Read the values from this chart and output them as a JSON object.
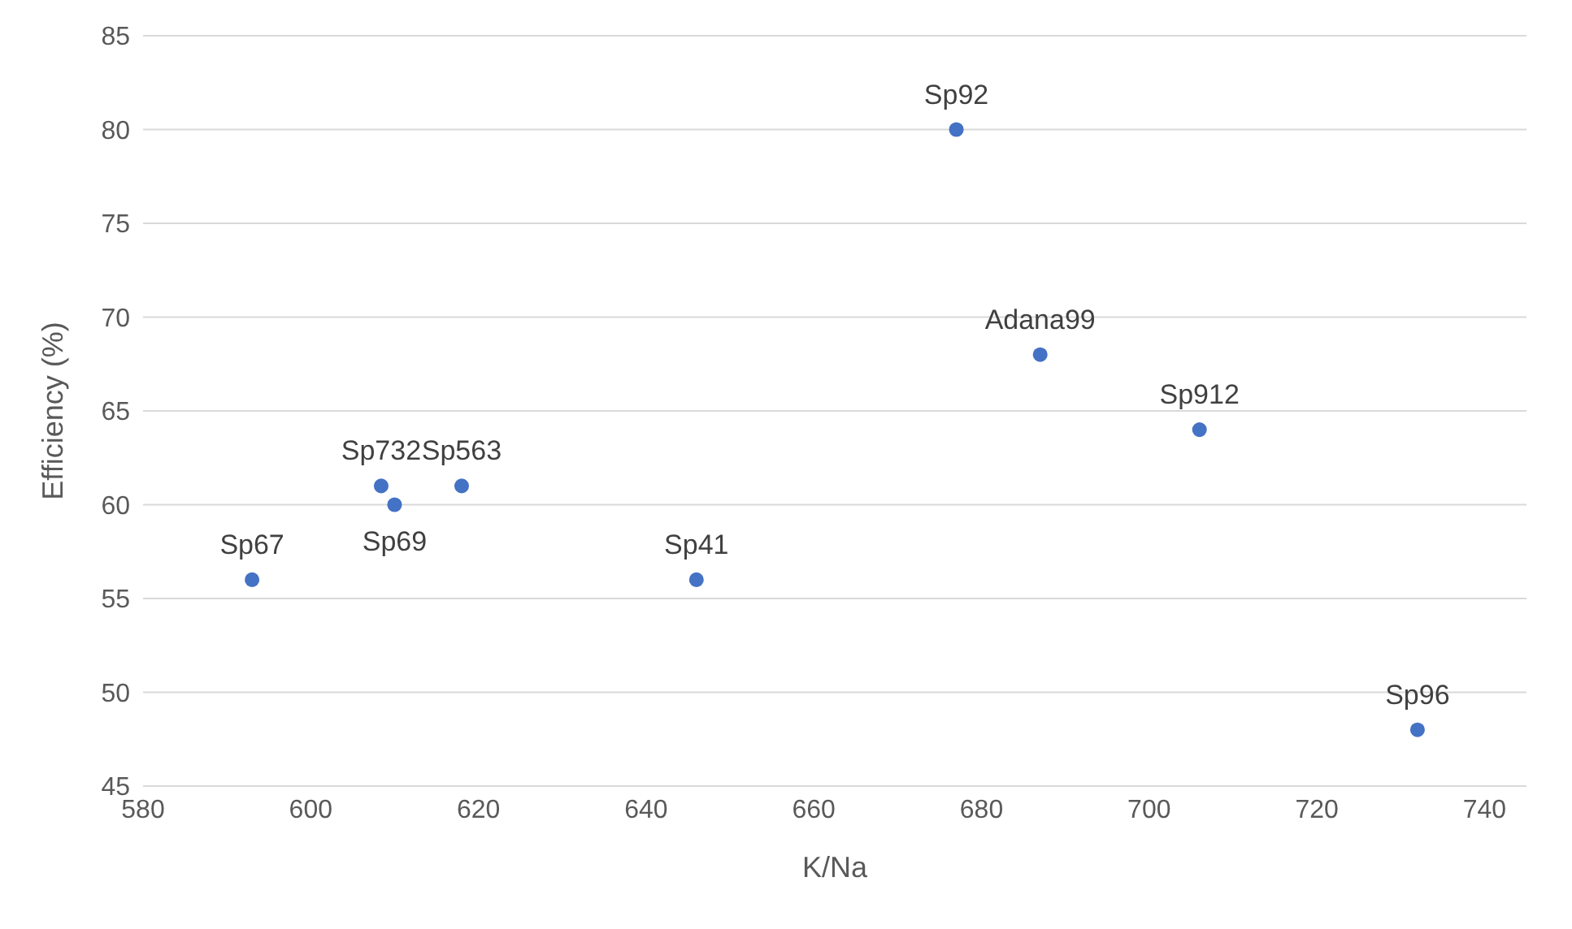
{
  "chart_data": {
    "type": "scatter",
    "xlabel": "K/Na",
    "ylabel": "Efficiency (%)",
    "x": [
      593,
      608.4,
      610,
      618,
      646,
      677,
      687,
      706,
      732
    ],
    "series": [
      {
        "color": "#4472c4",
        "values": [
          56,
          61,
          60,
          61,
          56,
          80,
          68,
          64,
          48
        ]
      }
    ],
    "xlim": [
      580,
      745
    ],
    "xticks": [
      580,
      600,
      620,
      640,
      660,
      680,
      700,
      720,
      740
    ],
    "ylim": [
      45,
      85
    ],
    "yticks": [
      45,
      50,
      55,
      60,
      65,
      70,
      75,
      80,
      85
    ],
    "grid": "y",
    "marker": "circle",
    "legend": false,
    "annotations": [
      {
        "text": "Sp67",
        "x": 593,
        "y": 56
      },
      {
        "text": "Sp732",
        "x": 608.4,
        "y": 61
      },
      {
        "text": "Sp69",
        "x": 610,
        "y": 60
      },
      {
        "text": "Sp563",
        "x": 618,
        "y": 61
      },
      {
        "text": "Sp41",
        "x": 646,
        "y": 56
      },
      {
        "text": "Sp92",
        "x": 677,
        "y": 80
      },
      {
        "text": "Adana99",
        "x": 687,
        "y": 68
      },
      {
        "text": "Sp912",
        "x": 706,
        "y": 64
      },
      {
        "text": "Sp96",
        "x": 732,
        "y": 48
      }
    ]
  }
}
